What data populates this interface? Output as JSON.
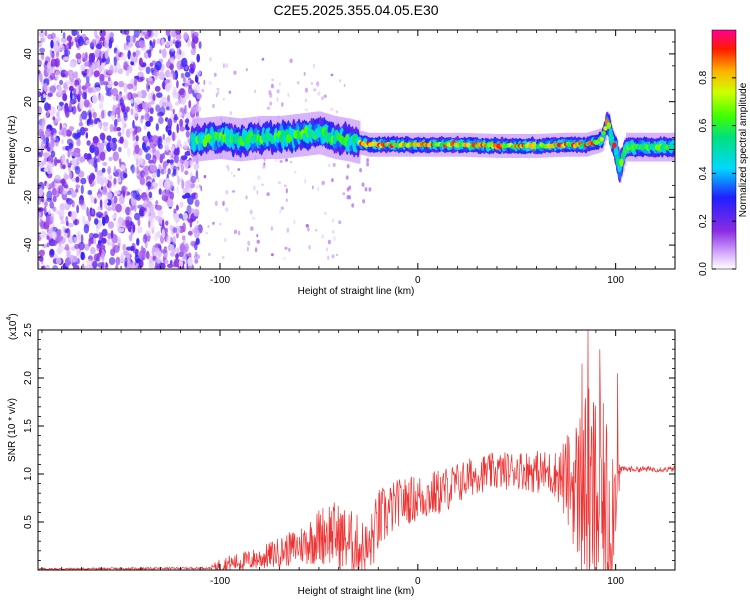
{
  "title": "C2E5.2025.355.04.05.E30",
  "chart_data": [
    {
      "type": "heatmap",
      "xlabel": "Height of straight line (km)",
      "ylabel": "Frequency (Hz)",
      "xlim": [
        -192,
        130
      ],
      "ylim": [
        -50,
        50
      ],
      "xticks": [
        -100,
        0,
        100
      ],
      "yticks": [
        -40,
        -20,
        0,
        20,
        40
      ],
      "xtick_labels": [
        "-100",
        "0",
        "100"
      ],
      "ytick_labels": [
        "-40",
        "-20",
        "0",
        "20",
        "40"
      ],
      "noise_region_x": [
        -192,
        -112
      ],
      "ridge": [
        {
          "x": -112,
          "y": 4
        },
        {
          "x": -100,
          "y": 5
        },
        {
          "x": -90,
          "y": 4
        },
        {
          "x": -80,
          "y": 5
        },
        {
          "x": -70,
          "y": 5
        },
        {
          "x": -60,
          "y": 6
        },
        {
          "x": -50,
          "y": 7
        },
        {
          "x": -42,
          "y": 5
        },
        {
          "x": -35,
          "y": 4
        },
        {
          "x": -25,
          "y": 2
        },
        {
          "x": -15,
          "y": 2
        },
        {
          "x": 0,
          "y": 2
        },
        {
          "x": 20,
          "y": 2
        },
        {
          "x": 40,
          "y": 1.5
        },
        {
          "x": 60,
          "y": 1.5
        },
        {
          "x": 75,
          "y": 2
        },
        {
          "x": 85,
          "y": 2
        },
        {
          "x": 93,
          "y": 4
        },
        {
          "x": 96,
          "y": 12
        },
        {
          "x": 98,
          "y": 4
        },
        {
          "x": 100,
          "y": 0
        },
        {
          "x": 102,
          "y": -8
        },
        {
          "x": 105,
          "y": 1
        },
        {
          "x": 115,
          "y": 1
        },
        {
          "x": 130,
          "y": 1
        }
      ],
      "colorbar": {
        "label": "Normalized spectral amplitude",
        "range": [
          0,
          1
        ],
        "ticks": [
          "0.0",
          "0.2",
          "0.4",
          "0.6",
          "0.8"
        ],
        "tick_values": [
          0.0,
          0.2,
          0.4,
          0.6,
          0.8
        ]
      }
    },
    {
      "type": "line",
      "xlabel": "Height of straight line (km)",
      "ylabel": "SNR (10 * v/v)",
      "multiplier": "(x10",
      "multiplier_exp": "4",
      "multiplier_close": ")",
      "xlim": [
        -192,
        130
      ],
      "ylim": [
        0,
        2.5
      ],
      "xticks": [
        -100,
        0,
        100
      ],
      "yticks": [
        0.5,
        1.0,
        1.5,
        2.0,
        2.5
      ],
      "xtick_labels": [
        "-100",
        "0",
        "100"
      ],
      "ytick_labels": [
        "0.5",
        "1.0",
        "1.5",
        "2.0",
        "2.5"
      ],
      "line_color": "#ee3333",
      "envelope": [
        {
          "x": -192,
          "base": 0.01,
          "amp": 0.01
        },
        {
          "x": -105,
          "base": 0.02,
          "amp": 0.01
        },
        {
          "x": -100,
          "base": 0.05,
          "amp": 0.08
        },
        {
          "x": -80,
          "base": 0.12,
          "amp": 0.12
        },
        {
          "x": -60,
          "base": 0.25,
          "amp": 0.2
        },
        {
          "x": -45,
          "base": 0.4,
          "amp": 0.35
        },
        {
          "x": -35,
          "base": 0.3,
          "amp": 0.35
        },
        {
          "x": -25,
          "base": 0.2,
          "amp": 0.3
        },
        {
          "x": -20,
          "base": 0.5,
          "amp": 0.35
        },
        {
          "x": -10,
          "base": 0.7,
          "amp": 0.25
        },
        {
          "x": 10,
          "base": 0.8,
          "amp": 0.25
        },
        {
          "x": 30,
          "base": 1.0,
          "amp": 0.2
        },
        {
          "x": 50,
          "base": 1.05,
          "amp": 0.2
        },
        {
          "x": 70,
          "base": 1.0,
          "amp": 0.25
        },
        {
          "x": 78,
          "base": 0.9,
          "amp": 0.6
        },
        {
          "x": 85,
          "base": 0.8,
          "amp": 1.1
        },
        {
          "x": 90,
          "base": 0.7,
          "amp": 1.2
        },
        {
          "x": 97,
          "base": 0.6,
          "amp": 1.0
        },
        {
          "x": 103,
          "base": 1.05,
          "amp": 0.03
        },
        {
          "x": 130,
          "base": 1.05,
          "amp": 0.03
        }
      ],
      "spikes": [
        {
          "x": 86,
          "y": 2.5
        },
        {
          "x": 83,
          "y": 2.15
        },
        {
          "x": 92,
          "y": 2.3
        },
        {
          "x": 101,
          "y": 2.05
        },
        {
          "x": 87,
          "y": 0.05
        },
        {
          "x": 96,
          "y": 0.08
        }
      ]
    }
  ]
}
